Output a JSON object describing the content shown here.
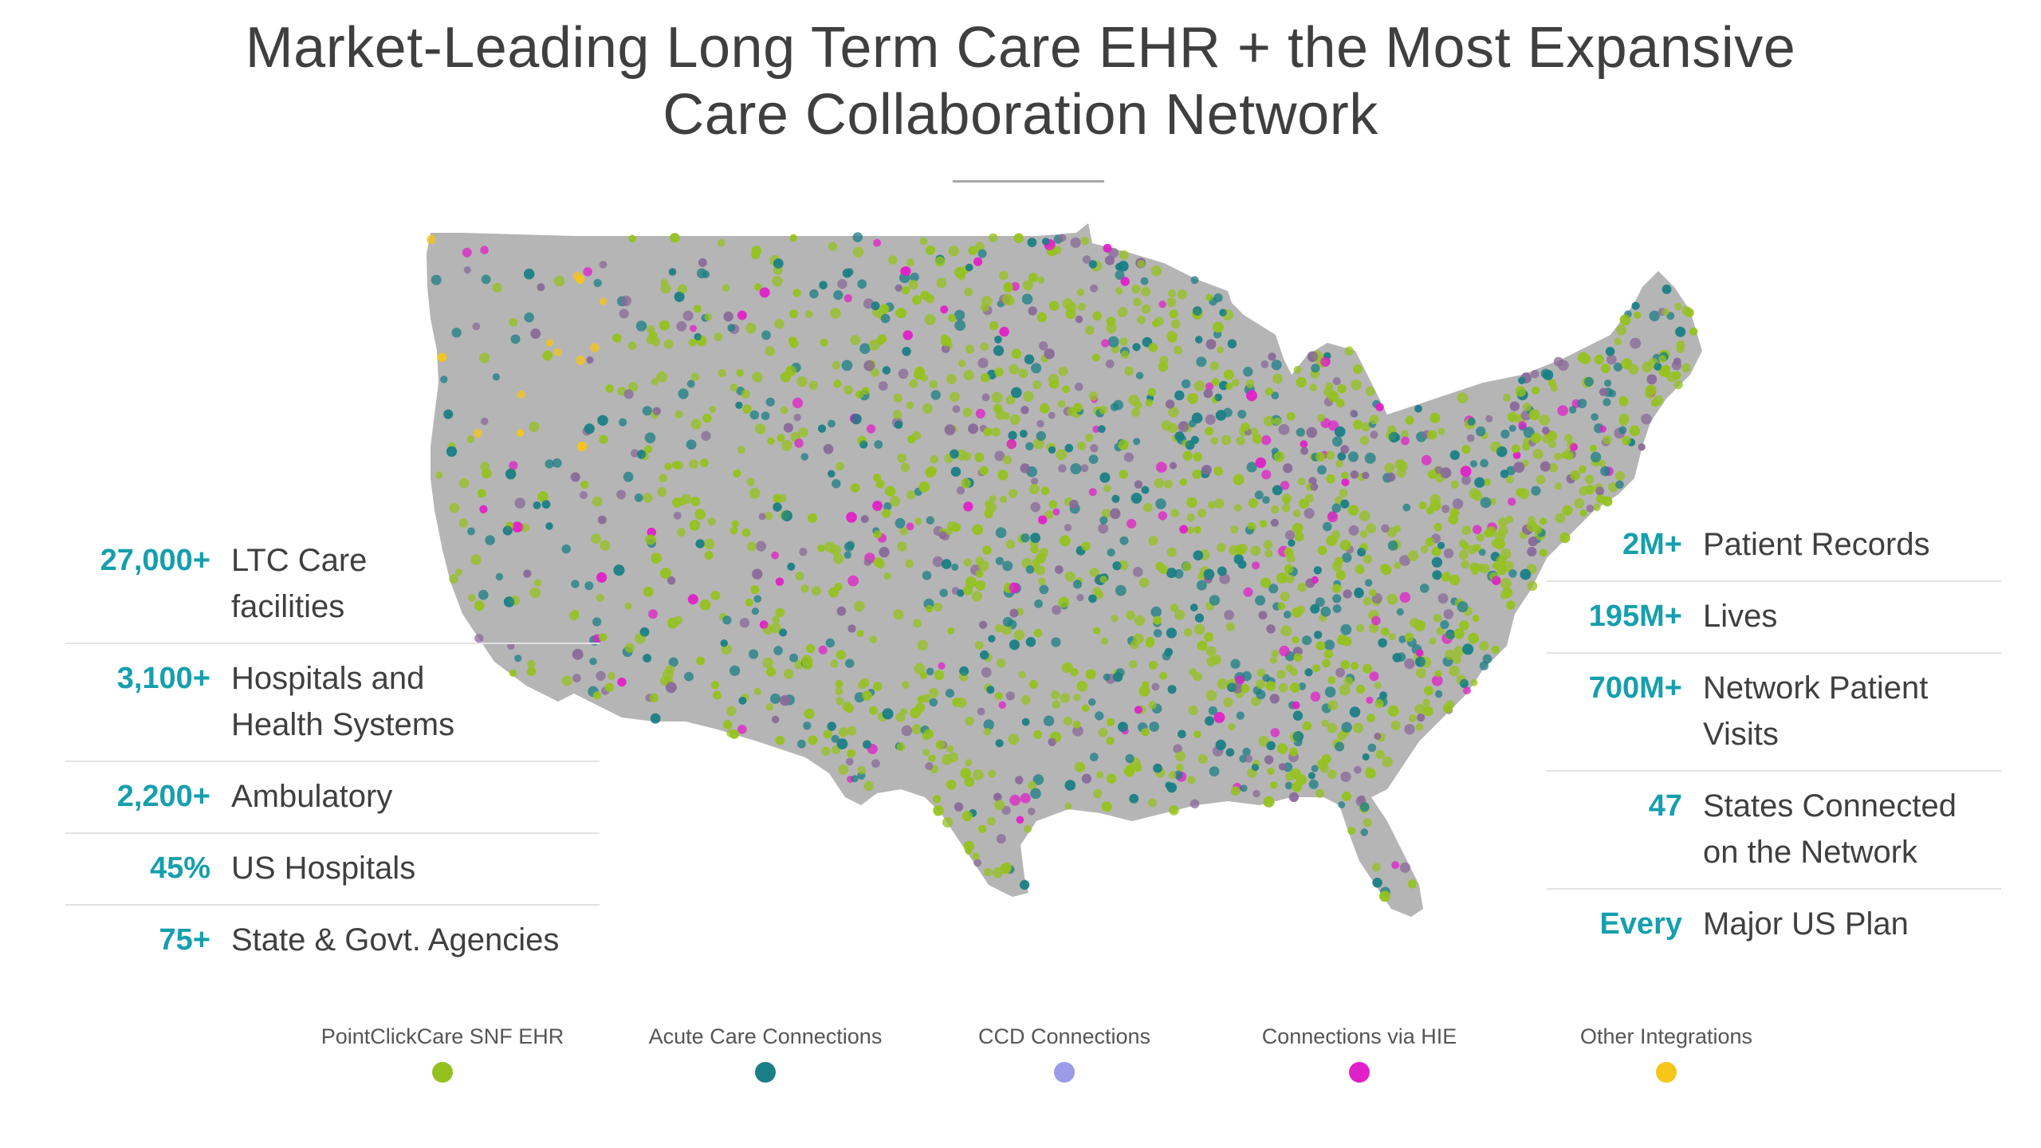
{
  "title": {
    "line1": "Market-Leading Long Term Care EHR + the Most Expansive",
    "line2": "Care Collaboration Network"
  },
  "map": {
    "land_color": "#b5b5b5",
    "icon": "us-map-icon"
  },
  "stats_left": [
    {
      "value": "27,000+",
      "label_line1": "LTC Care",
      "label_line2": "facilities"
    },
    {
      "value": "3,100+",
      "label_line1": "Hospitals and",
      "label_line2": "Health Systems"
    },
    {
      "value": "2,200+",
      "label_line1": "Ambulatory",
      "label_line2": ""
    },
    {
      "value": "45%",
      "label_line1": "US Hospitals",
      "label_line2": ""
    },
    {
      "value": "75+",
      "label_line1": "State & Govt. Agencies",
      "label_line2": ""
    }
  ],
  "stats_right": [
    {
      "value": "2M+",
      "label_line1": "Patient Records",
      "label_line2": ""
    },
    {
      "value": "195M+",
      "label_line1": "Lives",
      "label_line2": ""
    },
    {
      "value": "700M+",
      "label_line1": "Network Patient",
      "label_line2": "Visits"
    },
    {
      "value": "47",
      "label_line1": "States Connected",
      "label_line2": "on the Network"
    },
    {
      "value": "Every",
      "label_line1": "Major US Plan",
      "label_line2": ""
    }
  ],
  "legend": [
    {
      "label": "PointClickCare SNF EHR",
      "color": "#95c11f"
    },
    {
      "label": "Acute Care Connections",
      "color": "#1a7f86"
    },
    {
      "label": "CCD Connections",
      "color": "#9b9bea"
    },
    {
      "label": "Connections via HIE",
      "color": "#e020c8"
    },
    {
      "label": "Other Integrations",
      "color": "#f5c518"
    }
  ],
  "colors": {
    "accent": "#169fad",
    "text": "#3f3f3f"
  }
}
